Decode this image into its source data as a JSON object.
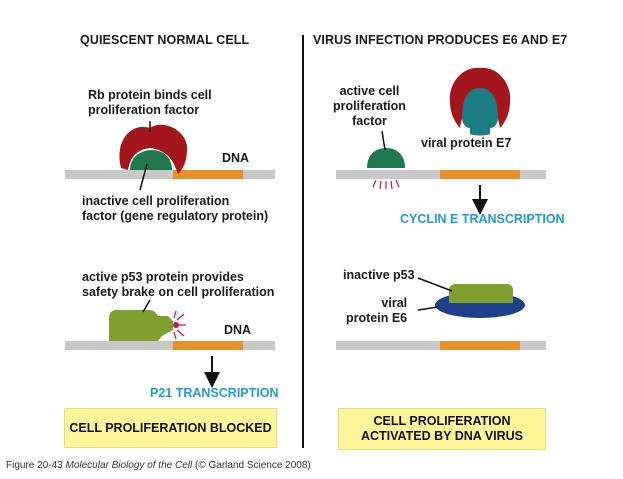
{
  "left_panel": {
    "heading": "QUIESCENT NORMAL CELL",
    "rb_label_1": "Rb protein binds cell",
    "rb_label_2": "proliferation factor",
    "dna_label_top": "DNA",
    "inactive_label_1": "inactive cell proliferation",
    "inactive_label_2": "factor (gene regulatory protein)",
    "p53_label_1": "active p53 protein provides",
    "p53_label_2": "safety brake on cell proliferation",
    "dna_label_bottom": "DNA",
    "transcription": "P21 TRANSCRIPTION",
    "result": "CELL PROLIFERATION BLOCKED"
  },
  "right_panel": {
    "heading": "VIRUS INFECTION PRODUCES E6 AND E7",
    "active_factor_1": "active cell",
    "active_factor_2": "proliferation",
    "active_factor_3": "factor",
    "e7_label": "viral protein E7",
    "transcription": "CYCLIN E TRANSCRIPTION",
    "inactive_p53": "inactive p53",
    "e6_label_1": "viral",
    "e6_label_2": "protein E6",
    "result_1": "CELL PROLIFERATION",
    "result_2": "ACTIVATED BY DNA VIRUS"
  },
  "caption": {
    "figure": "Figure 20-43",
    "book": "Molecular Biology of the Cell",
    "credit": "(© Garland Science 2008)"
  },
  "colors": {
    "dna_gray": "#c8c8c8",
    "dna_orange": "#e8902a",
    "rb_red": "#a3161e",
    "factor_green": "#1e7a4c",
    "p53_green": "#7fa02e",
    "e7_teal": "#1c7e82",
    "e6_blue": "#1e3f8c",
    "result_yellow": "#fff69a",
    "transcription_blue": "#1f9ad6"
  }
}
